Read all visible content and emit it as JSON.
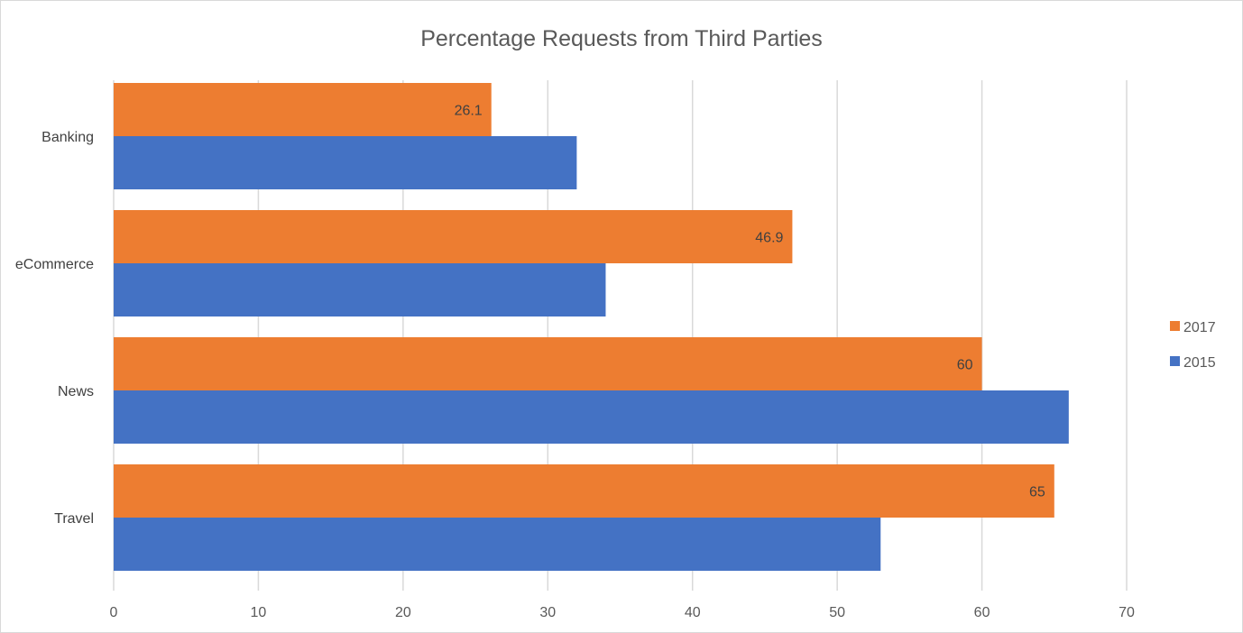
{
  "chart_data": {
    "type": "bar",
    "orientation": "horizontal",
    "title": "Percentage Requests from Third Parties",
    "categories": [
      "Banking",
      "eCommerce",
      "News",
      "Travel"
    ],
    "series": [
      {
        "name": "2017",
        "color": "#ED7D31",
        "values": [
          26.1,
          46.9,
          60,
          65
        ],
        "data_labels": [
          "26.1",
          "46.9",
          "60",
          "65"
        ]
      },
      {
        "name": "2015",
        "color": "#4472C4",
        "values": [
          32,
          34,
          66,
          53
        ]
      }
    ],
    "xlim": [
      0,
      70
    ],
    "x_ticks": [
      0,
      10,
      20,
      30,
      40,
      50,
      60,
      70
    ],
    "xlabel": "",
    "ylabel": "",
    "grid": "vertical",
    "legend_position": "right"
  }
}
